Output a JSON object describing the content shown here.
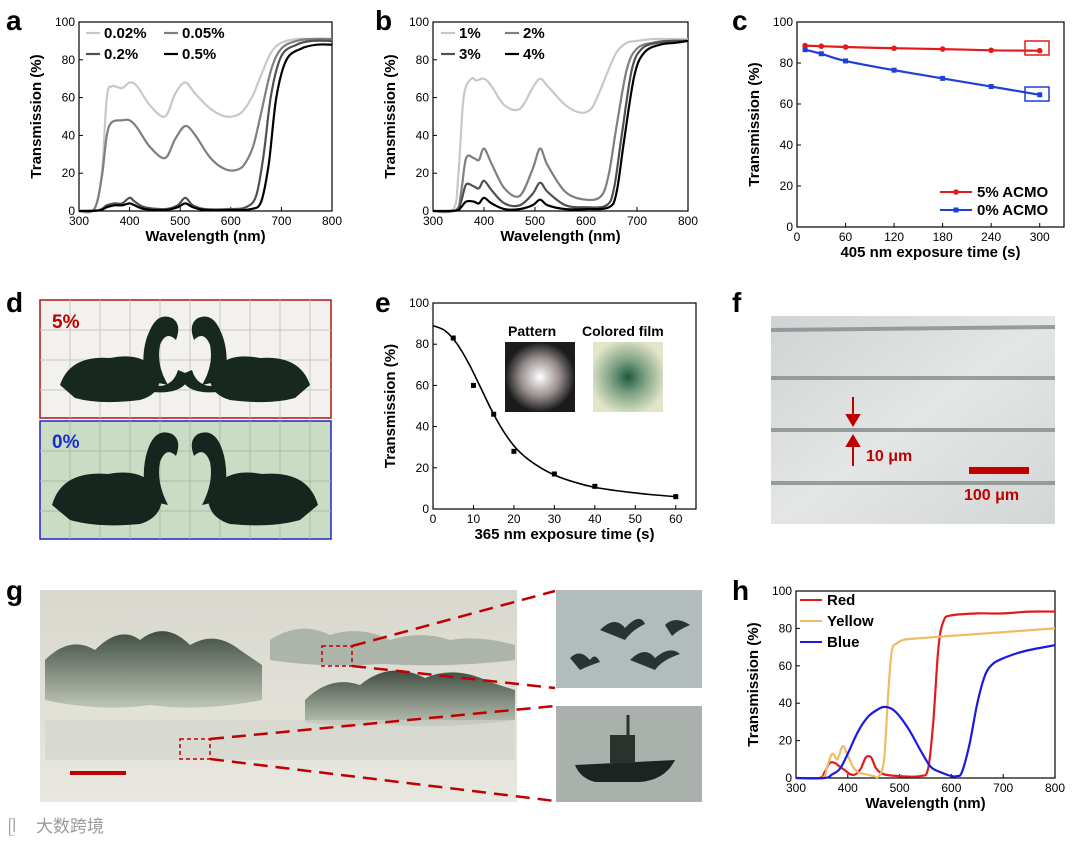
{
  "chart_data": [
    {
      "panel": "a",
      "type": "line",
      "xlabel": "Wavelength (nm)",
      "ylabel": "Transmission (%)",
      "xlim": [
        300,
        800
      ],
      "ylim": [
        0,
        100
      ],
      "xticks": [
        300,
        400,
        500,
        600,
        700,
        800
      ],
      "yticks": [
        0,
        20,
        40,
        60,
        80,
        100
      ],
      "series": [
        {
          "name": "0.02%",
          "color": "#c8c8c8",
          "x": [
            300,
            330,
            345,
            355,
            365,
            385,
            400,
            415,
            440,
            470,
            490,
            510,
            530,
            560,
            590,
            615,
            630,
            645,
            660,
            680,
            700,
            730,
            760,
            800
          ],
          "y": [
            0,
            1,
            20,
            60,
            66,
            65,
            68,
            66,
            56,
            50,
            62,
            68,
            62,
            54,
            50,
            51,
            55,
            62,
            72,
            84,
            89,
            91,
            91,
            91
          ]
        },
        {
          "name": "0.05%",
          "color": "#7f7f7f",
          "x": [
            300,
            330,
            345,
            355,
            365,
            385,
            400,
            415,
            440,
            470,
            490,
            510,
            530,
            560,
            590,
            615,
            630,
            645,
            660,
            680,
            700,
            730,
            760,
            800
          ],
          "y": [
            0,
            1,
            18,
            40,
            47,
            48,
            48,
            44,
            34,
            28,
            38,
            45,
            40,
            28,
            22,
            22,
            26,
            35,
            52,
            75,
            86,
            90,
            91,
            91
          ]
        },
        {
          "name": "0.2%",
          "color": "#505050",
          "x": [
            300,
            340,
            355,
            370,
            385,
            400,
            410,
            430,
            470,
            495,
            510,
            525,
            550,
            600,
            630,
            650,
            665,
            680,
            700,
            730,
            760,
            800
          ],
          "y": [
            0,
            0.5,
            3,
            4,
            4,
            7,
            5,
            2,
            1,
            3,
            7,
            3,
            1,
            1,
            2,
            8,
            30,
            62,
            82,
            88,
            90,
            90
          ]
        },
        {
          "name": "0.5%",
          "color": "#000000",
          "x": [
            300,
            340,
            355,
            370,
            385,
            400,
            410,
            430,
            470,
            495,
            510,
            525,
            550,
            600,
            640,
            660,
            675,
            690,
            710,
            740,
            770,
            800
          ],
          "y": [
            0,
            0.3,
            2,
            3,
            3,
            4,
            3,
            1,
            0.5,
            2,
            4,
            2,
            0.5,
            0.5,
            1,
            5,
            25,
            60,
            80,
            86,
            88,
            88
          ]
        }
      ],
      "legend_position": "top-left"
    },
    {
      "panel": "b",
      "type": "line",
      "xlabel": "Wavelength (nm)",
      "ylabel": "Transmission (%)",
      "xlim": [
        300,
        800
      ],
      "ylim": [
        0,
        100
      ],
      "xticks": [
        300,
        400,
        500,
        600,
        700,
        800
      ],
      "yticks": [
        0,
        20,
        40,
        60,
        80,
        100
      ],
      "series": [
        {
          "name": "1%",
          "color": "#c8c8c8",
          "x": [
            300,
            340,
            350,
            360,
            375,
            385,
            400,
            415,
            440,
            470,
            495,
            510,
            525,
            560,
            590,
            610,
            625,
            640,
            660,
            680,
            700,
            730,
            760,
            800
          ],
          "y": [
            0,
            1,
            20,
            60,
            70,
            69,
            70,
            66,
            56,
            54,
            65,
            70,
            66,
            56,
            52,
            54,
            62,
            72,
            84,
            89,
            90,
            91,
            91,
            91
          ]
        },
        {
          "name": "2%",
          "color": "#7f7f7f",
          "x": [
            300,
            345,
            355,
            365,
            380,
            390,
            400,
            415,
            440,
            470,
            495,
            510,
            525,
            560,
            600,
            630,
            645,
            660,
            680,
            700,
            730,
            760,
            800
          ],
          "y": [
            0,
            0.5,
            10,
            28,
            28,
            27,
            33,
            25,
            12,
            8,
            22,
            33,
            24,
            10,
            6,
            8,
            20,
            45,
            75,
            86,
            89,
            90,
            90
          ]
        },
        {
          "name": "3%",
          "color": "#505050",
          "x": [
            300,
            345,
            355,
            365,
            380,
            390,
            400,
            415,
            440,
            470,
            495,
            510,
            525,
            560,
            600,
            640,
            655,
            670,
            690,
            710,
            740,
            770,
            800
          ],
          "y": [
            0,
            0.3,
            5,
            14,
            13,
            12,
            16,
            11,
            4,
            3,
            9,
            15,
            10,
            3,
            2,
            3,
            12,
            40,
            75,
            86,
            89,
            90,
            90
          ]
        },
        {
          "name": "4%",
          "color": "#000000",
          "x": [
            300,
            345,
            355,
            365,
            380,
            390,
            400,
            415,
            440,
            470,
            495,
            510,
            525,
            560,
            600,
            645,
            660,
            675,
            695,
            715,
            745,
            775,
            800
          ],
          "y": [
            0,
            0.2,
            2,
            5,
            5,
            4,
            7,
            4,
            1,
            1,
            3,
            6,
            3,
            1,
            1,
            2,
            10,
            38,
            72,
            84,
            88,
            89,
            90
          ]
        }
      ],
      "legend_position": "top-left"
    },
    {
      "panel": "c",
      "type": "line",
      "xlabel": "405 nm exposure time (s)",
      "ylabel": "Transmission (%)",
      "xlim": [
        0,
        330
      ],
      "ylim": [
        0,
        100
      ],
      "xticks": [
        0,
        60,
        120,
        180,
        240,
        300
      ],
      "yticks": [
        0,
        20,
        40,
        60,
        80,
        100
      ],
      "series": [
        {
          "name": "5% ACMO",
          "color": "#e31a1c",
          "x": [
            10,
            30,
            60,
            120,
            180,
            240,
            300
          ],
          "y": [
            88.5,
            88.2,
            87.8,
            87.2,
            86.8,
            86.2,
            86
          ]
        },
        {
          "name": "0% ACMO",
          "color": "#1f3fd6",
          "x": [
            10,
            30,
            60,
            120,
            180,
            240,
            300
          ],
          "y": [
            86.5,
            84.5,
            81,
            76.5,
            72.5,
            68.5,
            64.5
          ]
        }
      ],
      "legend_position": "bottom-right"
    },
    {
      "panel": "e",
      "type": "scatter",
      "xlabel": "365 nm exposure time (s)",
      "ylabel": "Transmission (%)",
      "xlim": [
        0,
        65
      ],
      "ylim": [
        0,
        100
      ],
      "xticks": [
        0,
        10,
        20,
        30,
        40,
        50,
        60
      ],
      "yticks": [
        0,
        20,
        40,
        60,
        80,
        100
      ],
      "points": {
        "x": [
          5,
          10,
          15,
          20,
          30,
          40,
          60
        ],
        "y": [
          83,
          60,
          46,
          28,
          17,
          11,
          6
        ]
      },
      "fit": {
        "x": [
          0,
          3,
          6,
          9,
          12,
          15,
          18,
          21,
          25,
          30,
          35,
          40,
          45,
          50,
          55,
          60
        ],
        "y": [
          89,
          86.5,
          80,
          70,
          58,
          46,
          36,
          28.5,
          22,
          16.5,
          13,
          10.5,
          9,
          7.8,
          6.8,
          6
        ]
      },
      "annotations": [
        "Pattern",
        "Colored film"
      ]
    },
    {
      "panel": "h",
      "type": "line",
      "xlabel": "Wavelength (nm)",
      "ylabel": "Transmission (%)",
      "xlim": [
        300,
        800
      ],
      "ylim": [
        0,
        100
      ],
      "xticks": [
        300,
        400,
        500,
        600,
        700,
        800
      ],
      "yticks": [
        0,
        20,
        40,
        60,
        80,
        100
      ],
      "series": [
        {
          "name": "Red",
          "color": "#e31a1c",
          "x": [
            300,
            345,
            355,
            365,
            375,
            385,
            395,
            405,
            415,
            425,
            435,
            445,
            455,
            470,
            500,
            540,
            555,
            565,
            575,
            585,
            600,
            650,
            700,
            750,
            800
          ],
          "y": [
            0,
            0,
            3,
            8,
            8,
            6,
            4,
            2,
            2,
            5,
            11,
            11,
            5,
            2,
            1,
            1,
            5,
            30,
            70,
            84,
            87,
            88,
            88,
            89,
            89
          ]
        },
        {
          "name": "Yellow",
          "color": "#f0bb63",
          "x": [
            300,
            350,
            360,
            370,
            380,
            390,
            400,
            410,
            420,
            435,
            450,
            460,
            470,
            478,
            485,
            495,
            510,
            550,
            600,
            700,
            800
          ],
          "y": [
            0,
            0,
            6,
            13,
            10,
            17,
            12,
            6,
            3,
            2,
            1,
            1,
            10,
            45,
            68,
            72,
            74,
            75,
            76,
            78,
            80
          ]
        },
        {
          "name": "Blue",
          "color": "#1a1ae0",
          "x": [
            300,
            355,
            370,
            385,
            400,
            420,
            440,
            460,
            470,
            485,
            500,
            520,
            540,
            560,
            580,
            600,
            610,
            620,
            635,
            650,
            665,
            680,
            700,
            730,
            760,
            800
          ],
          "y": [
            0,
            0,
            2,
            5,
            13,
            25,
            33,
            37,
            38,
            37,
            33,
            25,
            15,
            6,
            3,
            1,
            1,
            3,
            18,
            40,
            55,
            61,
            64,
            67,
            69,
            71
          ]
        }
      ],
      "legend_position": "top-left"
    }
  ],
  "figure": {
    "panel_labels": [
      "a",
      "b",
      "c",
      "d",
      "e",
      "f",
      "g",
      "h"
    ],
    "d": {
      "top_label": "5%",
      "bottom_label": "0%"
    },
    "e": {
      "inset1": "Pattern",
      "inset2": "Colored film"
    },
    "f": {
      "spacing_label": "10 μm",
      "scale_label": "100 μm"
    },
    "watermark": "大数跨境"
  }
}
